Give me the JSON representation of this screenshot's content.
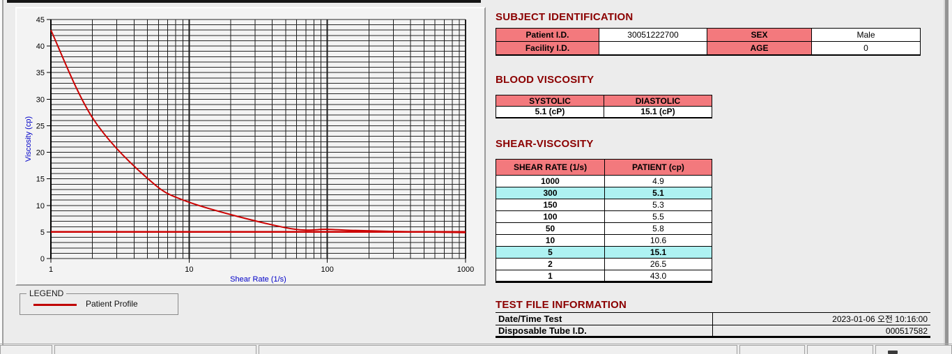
{
  "palette": {
    "background": "#ececec",
    "section_title": "#8b0000",
    "header_pink": "#f3797d",
    "highlight_cyan": "#aef2f2",
    "series_red": "#cc0000",
    "axis_label_blue": "#0000c8"
  },
  "chart": {
    "ylabel": "Viscosity (cp)",
    "xlabel": "Shear Rate (1/s)",
    "y_ticks": [
      0,
      5,
      10,
      15,
      20,
      25,
      30,
      35,
      40,
      45
    ],
    "x_ticks": [
      1,
      10,
      100,
      1000
    ]
  },
  "chart_data": {
    "type": "line",
    "title": "",
    "xlabel": "Shear Rate (1/s)",
    "ylabel": "Viscosity (cp)",
    "x_scale": "log",
    "xlim": [
      1,
      1000
    ],
    "ylim": [
      0,
      45
    ],
    "grid": "on",
    "legend_position": "bottom-left-external",
    "series": [
      {
        "name": "Patient Profile",
        "color": "#cc0000",
        "x": [
          1,
          2,
          5,
          10,
          50,
          100,
          150,
          300,
          1000
        ],
        "y": [
          43.0,
          26.5,
          15.1,
          10.6,
          5.8,
          5.5,
          5.3,
          5.1,
          4.9
        ]
      }
    ],
    "reference_line": {
      "y": 5.0,
      "color": "#cc0000"
    }
  },
  "legend": {
    "title": "LEGEND",
    "entries": [
      {
        "label": "Patient Profile",
        "color": "#c00000"
      }
    ]
  },
  "subject": {
    "title": "SUBJECT IDENTIFICATION",
    "patient_id_label": "Patient I.D.",
    "patient_id": "30051222700",
    "sex_label": "SEX",
    "sex": "Male",
    "facility_id_label": "Facility I.D.",
    "facility_id": "",
    "age_label": "AGE",
    "age": "0"
  },
  "blood": {
    "title": "BLOOD VISCOSITY",
    "systolic_label": "SYSTOLIC",
    "diastolic_label": "DIASTOLIC",
    "systolic_value": "5.1 (cP)",
    "diastolic_value": "15.1 (cP)"
  },
  "shear": {
    "title": "SHEAR-VISCOSITY",
    "col_rate": "SHEAR RATE (1/s)",
    "col_patient": "PATIENT (cp)",
    "rows": [
      {
        "rate": "1000",
        "value": "4.9",
        "highlight": false
      },
      {
        "rate": "300",
        "value": "5.1",
        "highlight": true
      },
      {
        "rate": "150",
        "value": "5.3",
        "highlight": false
      },
      {
        "rate": "100",
        "value": "5.5",
        "highlight": false
      },
      {
        "rate": "50",
        "value": "5.8",
        "highlight": false
      },
      {
        "rate": "10",
        "value": "10.6",
        "highlight": false
      },
      {
        "rate": "5",
        "value": "15.1",
        "highlight": true
      },
      {
        "rate": "2",
        "value": "26.5",
        "highlight": false
      },
      {
        "rate": "1",
        "value": "43.0",
        "highlight": false
      }
    ]
  },
  "testfile": {
    "title": "TEST FILE INFORMATION",
    "datetime_label": "Date/Time Test",
    "datetime_value": "2023-01-06  오전 10:16:00",
    "tube_label": "Disposable Tube I.D.",
    "tube_value": "000517582"
  }
}
